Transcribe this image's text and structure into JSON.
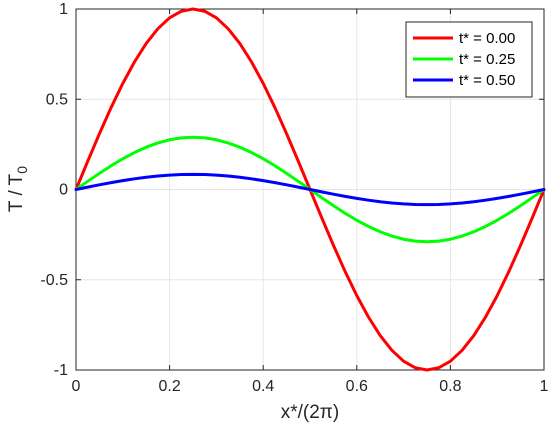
{
  "chart_data": {
    "type": "line",
    "x": [
      0,
      0.025,
      0.05,
      0.075,
      0.1,
      0.125,
      0.15,
      0.175,
      0.2,
      0.225,
      0.25,
      0.275,
      0.3,
      0.325,
      0.35,
      0.375,
      0.4,
      0.425,
      0.45,
      0.475,
      0.5,
      0.525,
      0.55,
      0.575,
      0.6,
      0.625,
      0.65,
      0.675,
      0.7,
      0.725,
      0.75,
      0.775,
      0.8,
      0.825,
      0.85,
      0.875,
      0.9,
      0.925,
      0.95,
      0.975,
      1
    ],
    "series": [
      {
        "name": "t* = 0.00",
        "color": "#ff0000",
        "values": [
          0,
          0.1564,
          0.309,
          0.454,
          0.5878,
          0.7071,
          0.809,
          0.891,
          0.9511,
          0.9877,
          1.0,
          0.9877,
          0.9511,
          0.891,
          0.809,
          0.7071,
          0.5878,
          0.454,
          0.309,
          0.1564,
          0,
          -0.1564,
          -0.309,
          -0.454,
          -0.5878,
          -0.7071,
          -0.809,
          -0.891,
          -0.9511,
          -0.9877,
          -1.0,
          -0.9877,
          -0.9511,
          -0.891,
          -0.809,
          -0.7071,
          -0.5878,
          -0.454,
          -0.309,
          -0.1564,
          0
        ]
      },
      {
        "name": "t* = 0.25",
        "color": "#00ff00",
        "values": [
          0,
          0.0453,
          0.0895,
          0.1315,
          0.1703,
          0.2048,
          0.2343,
          0.2581,
          0.2755,
          0.2861,
          0.2897,
          0.2861,
          0.2755,
          0.2581,
          0.2343,
          0.2048,
          0.1703,
          0.1315,
          0.0895,
          0.0453,
          0,
          -0.0453,
          -0.0895,
          -0.1315,
          -0.1703,
          -0.2048,
          -0.2343,
          -0.2581,
          -0.2755,
          -0.2861,
          -0.2897,
          -0.2861,
          -0.2755,
          -0.2581,
          -0.2343,
          -0.2048,
          -0.1703,
          -0.1315,
          -0.0895,
          -0.0453,
          0
        ]
      },
      {
        "name": "t* = 0.50",
        "color": "#0000ff",
        "values": [
          0,
          0.0131,
          0.0259,
          0.0381,
          0.0493,
          0.0593,
          0.0679,
          0.0748,
          0.0798,
          0.0829,
          0.0839,
          0.0829,
          0.0798,
          0.0748,
          0.0679,
          0.0593,
          0.0493,
          0.0381,
          0.0259,
          0.0131,
          0,
          -0.0131,
          -0.0259,
          -0.0381,
          -0.0493,
          -0.0593,
          -0.0679,
          -0.0748,
          -0.0798,
          -0.0829,
          -0.0839,
          -0.0829,
          -0.0798,
          -0.0748,
          -0.0679,
          -0.0593,
          -0.0493,
          -0.0381,
          -0.0259,
          -0.0131,
          0
        ]
      }
    ],
    "xlim": [
      0,
      1
    ],
    "ylim": [
      -1,
      1
    ],
    "xticks": [
      0,
      0.2,
      0.4,
      0.6,
      0.8,
      1
    ],
    "xtick_labels": [
      "0",
      "0.2",
      "0.4",
      "0.6",
      "0.8",
      "1"
    ],
    "yticks": [
      -1,
      -0.5,
      0,
      0.5,
      1
    ],
    "ytick_labels": [
      "-1",
      "-0.5",
      "0",
      "0.5",
      "1"
    ],
    "xlabel": "x*/(2π)",
    "ylabel_main": "T / T",
    "ylabel_sub": "0",
    "grid": true,
    "legend_position": "top-right"
  }
}
